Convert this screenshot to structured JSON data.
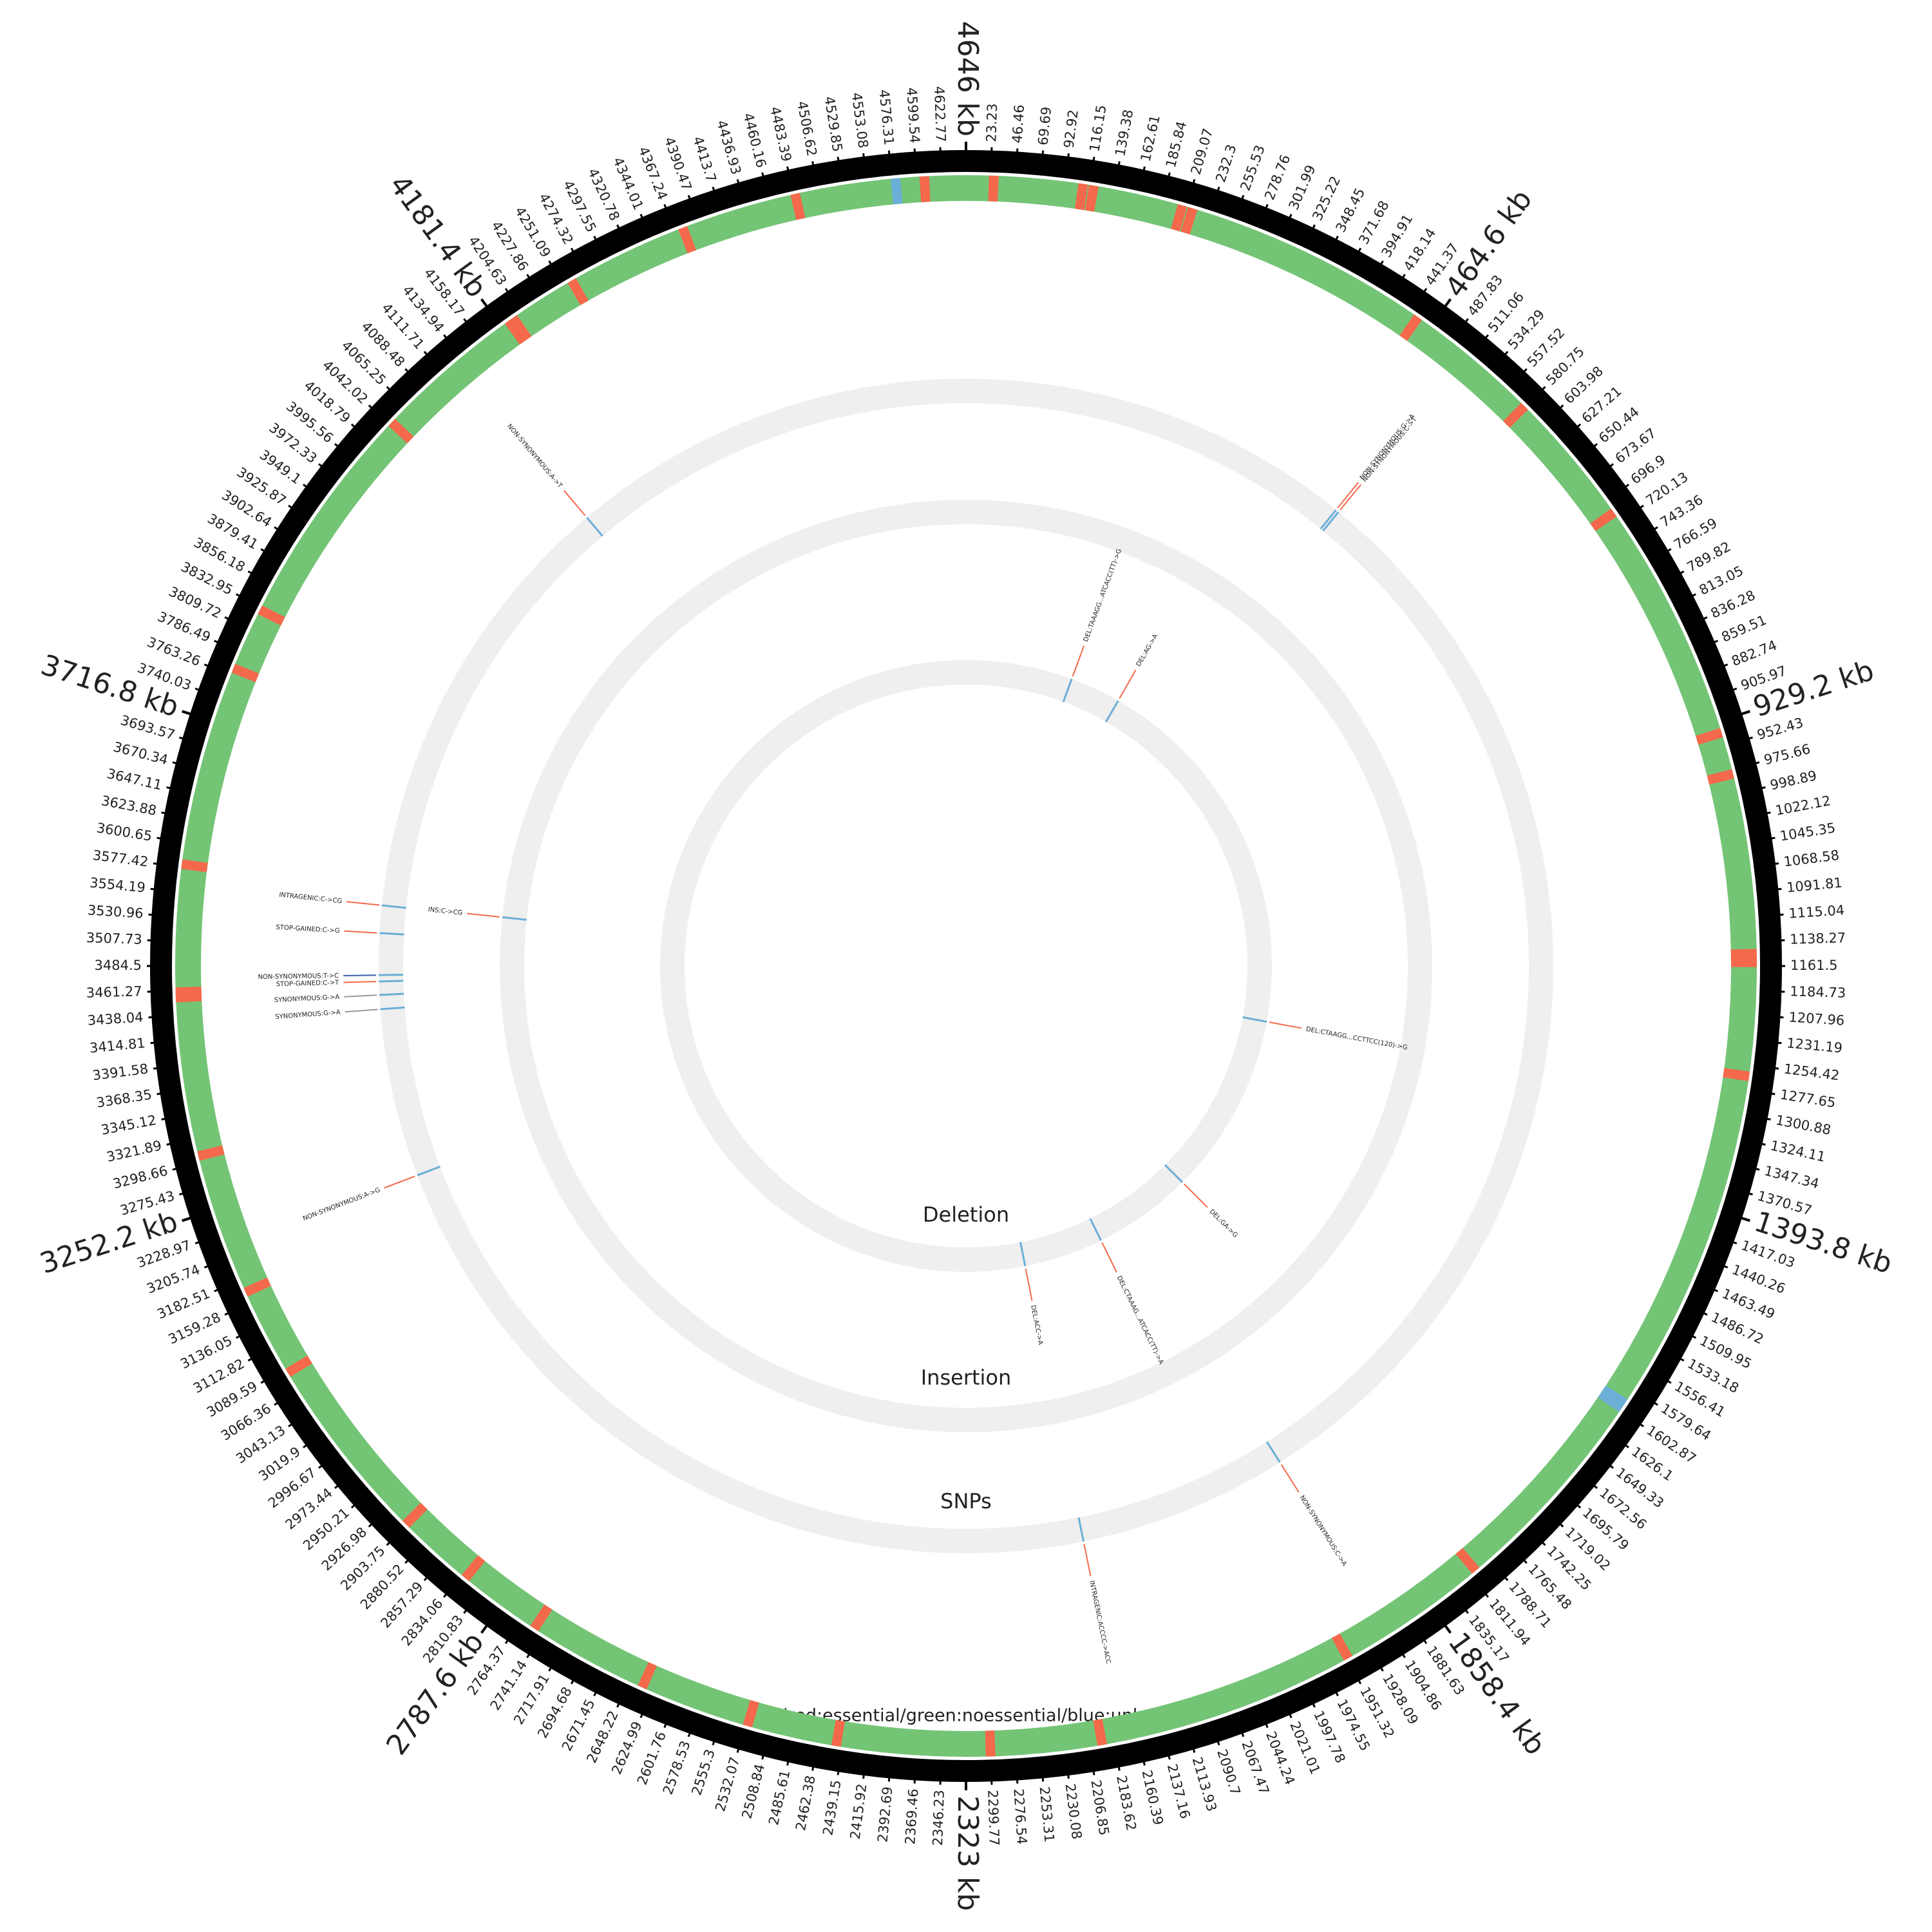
{
  "chart_data": {
    "type": "circos",
    "xlim": [
      0,
      4646
    ],
    "xticks": [
      23.23,
      46.46,
      69.69,
      92.92,
      116.15,
      139.38,
      162.61,
      185.84,
      209.07,
      232.3,
      255.53,
      278.76,
      301.99,
      325.22,
      348.45,
      371.68,
      394.91,
      418.14,
      441.37,
      {
        "value": 464.6,
        "label": "464.6 kb"
      },
      487.83,
      511.06,
      534.29,
      557.52,
      580.75,
      603.98,
      627.21,
      650.44,
      673.67,
      696.9,
      720.13,
      743.36,
      766.59,
      789.82,
      813.05,
      836.28,
      859.51,
      882.74,
      905.97,
      {
        "value": 929.2,
        "label": "929.2 kb"
      },
      952.43,
      975.66,
      998.89,
      1022.12,
      1045.35,
      1068.58,
      1091.81,
      1115.04,
      1138.27,
      1161.5,
      1184.73,
      1207.96,
      1231.19,
      1254.42,
      1277.65,
      1300.88,
      1324.11,
      1347.34,
      1370.57,
      {
        "value": 1393.8,
        "label": "1393.8 kb"
      },
      1417.03,
      1440.26,
      1463.49,
      1486.72,
      1509.95,
      1533.18,
      1556.41,
      1579.64,
      1602.87,
      1626.1,
      1649.33,
      1672.56,
      1695.79,
      1719.02,
      1742.25,
      1765.48,
      1788.71,
      1811.94,
      1835.17,
      {
        "value": 1858.4,
        "label": "1858.4 kb"
      },
      1881.63,
      1904.86,
      1928.09,
      1951.32,
      1974.55,
      1997.78,
      2021.01,
      2044.24,
      2067.47,
      2090.7,
      2113.93,
      2137.16,
      2160.39,
      2183.62,
      2206.85,
      2230.08,
      2253.31,
      2276.54,
      2299.77,
      {
        "value": 2323,
        "label": "2323 kb"
      },
      2346.23,
      2369.46,
      2392.69,
      2415.92,
      2439.15,
      2462.38,
      2485.61,
      2508.84,
      2532.07,
      2555.3,
      2578.53,
      2601.76,
      2624.99,
      2648.22,
      2671.45,
      2694.68,
      2717.91,
      2741.14,
      2764.37,
      {
        "value": 2787.6,
        "label": "2787.6 kb"
      },
      2810.83,
      2834.06,
      2857.29,
      2880.52,
      2903.75,
      2926.98,
      2950.21,
      2973.44,
      2996.67,
      3019.9,
      3043.13,
      3066.36,
      3089.59,
      3112.82,
      3136.05,
      3159.28,
      3182.51,
      3205.74,
      3228.97,
      {
        "value": 3252.2,
        "label": "3252.2 kb"
      },
      3275.43,
      3298.66,
      3321.89,
      3345.12,
      3368.35,
      3391.58,
      3414.81,
      3438.04,
      3461.27,
      3484.5,
      3507.73,
      3530.96,
      3554.19,
      3577.42,
      3600.65,
      3623.88,
      3647.11,
      3670.34,
      3693.57,
      {
        "value": 3716.8,
        "label": "3716.8 kb"
      },
      3740.03,
      3763.26,
      3786.49,
      3809.72,
      3832.95,
      3856.18,
      3879.41,
      3902.64,
      3925.87,
      3949.1,
      3972.33,
      3995.56,
      4018.79,
      4042.02,
      4065.25,
      4088.48,
      4111.71,
      4134.94,
      4158.17,
      {
        "value": 4181.4,
        "label": "4181.4 kb"
      },
      4204.63,
      4227.86,
      4251.09,
      4274.32,
      4297.55,
      4320.78,
      4344.01,
      4367.24,
      4390.47,
      4413.7,
      4436.93,
      4460.16,
      4483.39,
      4506.62,
      4529.85,
      4553.08,
      4576.31,
      4599.54,
      4622.77,
      {
        "value": 4646,
        "label": "4646 kb"
      }
    ],
    "gene_track": {
      "label": "Class(red:essential/green:noessential/blue:unknown)",
      "base_color": "#74c476",
      "essential": {
        "color": "#f4694b",
        "positions": [
          26,
          110,
          120,
          205,
          215,
          450,
          580,
          710,
          940,
          980,
          1150,
          1158,
          1265,
          1805,
          1950,
          2195,
          2300,
          2445,
          2530,
          2635,
          2750,
          2830,
          2905,
          3085,
          3170,
          3305,
          3455,
          3460,
          3580,
          3770,
          3830,
          4045,
          4190,
          4195,
          4260,
          4375,
          4485,
          4607
        ]
      },
      "unknown": {
        "color": "#6baed6",
        "positions": [
          1595,
          1600,
          4580
        ]
      }
    },
    "mutation_tracks": [
      {
        "name": "SNPs",
        "mutations": [
          {
            "position": 4127,
            "label": "NON-SYNONYMOUS:A->T",
            "color": "#f4694b"
          },
          {
            "position": 504,
            "label": "NON-SYNONYMOUS:G->A",
            "color": "#f4694b"
          },
          {
            "position": 508,
            "label": "NON-SYNONYMOUS:C->T",
            "color": "#f4694b"
          },
          {
            "position": 3561,
            "label": "INTRAGENIC:C->CG",
            "color": "#f4694b"
          },
          {
            "position": 3526,
            "label": "STOP-GAINED:C->G",
            "color": "#f4694b"
          },
          {
            "position": 3473,
            "label": "NON-SYNONYMOUS:T->C",
            "color": "#3a5fa8"
          },
          {
            "position": 3465,
            "label": "STOP-GAINED:C->T",
            "color": "#f4694b"
          },
          {
            "position": 3448,
            "label": "SYNONYMOUS:G->A",
            "color": "#999999"
          },
          {
            "position": 3430,
            "label": "SYNONYMOUS:G->A",
            "color": "#999999"
          },
          {
            "position": 3215,
            "label": "NON-SYNONYMOUS:A->G",
            "color": "#f4694b"
          },
          {
            "position": 1906,
            "label": "NON-SYNONYMOUS:C->A",
            "color": "#f4694b"
          },
          {
            "position": 2174,
            "label": "INTRAGENIC:ACCCC->ACC",
            "color": "#f4694b"
          }
        ]
      },
      {
        "name": "Insertion",
        "mutations": [
          {
            "position": 3562,
            "label": "INS:C->CG",
            "color": "#f4694b"
          }
        ]
      },
      {
        "name": "Deletion",
        "mutations": [
          {
            "position": 261,
            "label": "DEL:TAAAGG...ATCACC(TT)->G",
            "color": "#f4694b"
          },
          {
            "position": 385,
            "label": "DEL:AG->A",
            "color": "#f4694b"
          },
          {
            "position": 1297,
            "label": "DEL:CTAAGG...CCTTCC(120)->G",
            "color": "#f4694b"
          },
          {
            "position": 1742,
            "label": "DEL:GA->G",
            "color": "#f4694b"
          },
          {
            "position": 1985,
            "label": "DEL:CTAAAG...ATCACC(TT)->A",
            "color": "#f4694b"
          },
          {
            "position": 2179,
            "label": "DEL:ACC->A",
            "color": "#f4694b"
          }
        ]
      }
    ]
  }
}
